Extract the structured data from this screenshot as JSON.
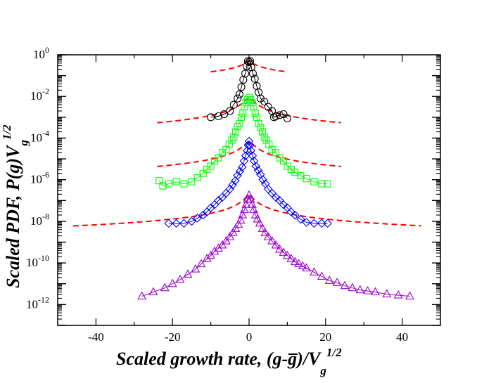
{
  "chart_data": {
    "type": "scatter",
    "title": "",
    "xlabel": "Scaled growth rate, (g-g̅)/V",
    "xlabel_sub": "g",
    "xlabel_sup": "1/2",
    "ylabel": "Scaled PDF, P(g)V",
    "ylabel_sub": "g",
    "ylabel_sup": "1/2",
    "xlim": [
      -50,
      50
    ],
    "ylim_log10": [
      -13,
      0
    ],
    "xticks": [
      -40,
      -20,
      0,
      20,
      40
    ],
    "xtick_labels": [
      "-40",
      "-20",
      "0",
      "20",
      "40"
    ],
    "yticks_log10": [
      0,
      -2,
      -4,
      -6,
      -8,
      -10,
      -12
    ],
    "ytick_base": "10",
    "ytick_exponents": [
      "0",
      "-2",
      "-4",
      "-6",
      "-8",
      "-10",
      "-12"
    ],
    "grid": false,
    "series": [
      {
        "name": "black circles",
        "marker": "circle",
        "color": "#000000",
        "connected": true,
        "x": [
          -10,
          -8,
          -6.5,
          -5,
          -4,
          -3,
          -2.5,
          -2,
          -1.5,
          -1,
          -0.6,
          -0.3,
          0,
          0.3,
          0.6,
          1,
          1.5,
          2,
          2.5,
          3,
          4,
          5,
          6,
          6.5,
          7,
          8,
          9,
          10
        ],
        "log10y": [
          -3.0,
          -2.95,
          -2.85,
          -2.7,
          -2.4,
          -2.1,
          -1.9,
          -1.55,
          -1.2,
          -0.9,
          -0.55,
          -0.3,
          -0.35,
          -0.3,
          -0.6,
          -0.9,
          -1.15,
          -1.5,
          -1.8,
          -2.1,
          -2.25,
          -2.5,
          -2.7,
          -3.0,
          -2.95,
          -2.9,
          -2.85,
          -3.05
        ]
      },
      {
        "name": "green squares",
        "marker": "square",
        "color": "#00ff00",
        "connected": true,
        "x": [
          -23.5,
          -22.5,
          -21,
          -19,
          -17,
          -15,
          -13.5,
          -12,
          -11,
          -10,
          -9,
          -8,
          -7,
          -6,
          -5.2,
          -4.5,
          -4,
          -3.5,
          -3,
          -2.5,
          -2,
          -1.6,
          -1.2,
          -0.8,
          -0.4,
          0,
          0.4,
          0.8,
          1.2,
          1.6,
          2,
          2.5,
          3,
          3.5,
          4,
          4.5,
          5.2,
          6,
          7,
          8,
          9,
          10,
          11,
          12,
          13.5,
          15,
          17,
          19,
          20.5
        ],
        "log10y": [
          -6.05,
          -6.3,
          -6.2,
          -6.1,
          -6.2,
          -6.1,
          -5.9,
          -5.7,
          -5.5,
          -5.35,
          -5.1,
          -4.95,
          -4.7,
          -4.55,
          -4.3,
          -4.1,
          -3.95,
          -3.7,
          -3.45,
          -3.3,
          -3.0,
          -2.8,
          -2.5,
          -2.3,
          -2.15,
          -2.05,
          -2.15,
          -2.3,
          -2.5,
          -2.8,
          -3.0,
          -3.3,
          -3.5,
          -3.7,
          -3.95,
          -4.1,
          -4.3,
          -4.55,
          -4.7,
          -4.95,
          -5.1,
          -5.35,
          -5.5,
          -5.65,
          -5.8,
          -5.95,
          -6.1,
          -6.2,
          -6.2
        ]
      },
      {
        "name": "blue diamonds",
        "marker": "diamond",
        "color": "#0000ff",
        "connected": true,
        "x": [
          -21,
          -19,
          -17,
          -15,
          -13.5,
          -12,
          -11,
          -10,
          -9,
          -8,
          -7,
          -6,
          -5,
          -4.3,
          -3.6,
          -3,
          -2.4,
          -1.8,
          -1.3,
          -0.9,
          -0.5,
          -0.2,
          0,
          0.2,
          0.5,
          0.9,
          1.3,
          1.8,
          2.4,
          3,
          3.6,
          4.3,
          5,
          6,
          7,
          8,
          9,
          10,
          11,
          12,
          13.5,
          15,
          17,
          19,
          20.5
        ],
        "log10y": [
          -8.1,
          -8.1,
          -8.1,
          -8.0,
          -7.85,
          -7.7,
          -7.55,
          -7.35,
          -7.2,
          -7.0,
          -6.85,
          -6.65,
          -6.45,
          -6.25,
          -6.05,
          -5.8,
          -5.6,
          -5.4,
          -5.1,
          -4.85,
          -4.6,
          -4.35,
          -4.15,
          -4.35,
          -4.6,
          -4.85,
          -5.1,
          -5.35,
          -5.55,
          -5.75,
          -6.0,
          -6.2,
          -6.45,
          -6.65,
          -6.85,
          -7.0,
          -7.2,
          -7.35,
          -7.55,
          -7.7,
          -7.9,
          -8.05,
          -8.1,
          -8.1,
          -8.1
        ]
      },
      {
        "name": "purple triangles",
        "marker": "triangle",
        "color": "#9900cc",
        "connected": true,
        "x": [
          -28,
          -25,
          -22,
          -20,
          -18,
          -16,
          -14,
          -12.5,
          -11,
          -10,
          -9,
          -8,
          -7,
          -6,
          -5,
          -4.2,
          -3.5,
          -2.8,
          -2.2,
          -1.7,
          -1.2,
          -0.8,
          -0.4,
          0,
          0.4,
          0.8,
          1.2,
          1.7,
          2.2,
          2.8,
          3.5,
          4.2,
          5,
          6,
          7,
          8,
          9,
          10,
          11,
          12,
          13,
          14,
          15,
          17,
          19,
          21,
          23,
          25,
          27,
          29,
          31,
          33,
          36,
          39,
          42
        ],
        "log10y": [
          -11.6,
          -11.4,
          -11.2,
          -11.0,
          -10.8,
          -10.55,
          -10.3,
          -10.05,
          -9.8,
          -9.65,
          -9.45,
          -9.3,
          -9.15,
          -8.95,
          -8.75,
          -8.55,
          -8.35,
          -8.15,
          -7.95,
          -7.7,
          -7.45,
          -7.2,
          -6.95,
          -6.75,
          -6.95,
          -7.2,
          -7.45,
          -7.7,
          -7.9,
          -8.1,
          -8.35,
          -8.55,
          -8.75,
          -8.95,
          -9.15,
          -9.35,
          -9.5,
          -9.65,
          -9.8,
          -9.95,
          -10.05,
          -10.15,
          -10.25,
          -10.45,
          -10.65,
          -10.85,
          -10.95,
          -11.1,
          -11.2,
          -11.3,
          -11.35,
          -11.4,
          -11.5,
          -11.55,
          -11.6
        ]
      }
    ],
    "fits": [
      {
        "name": "fit black",
        "color": "#ff0000",
        "style": "dashed",
        "x_range": [
          -10,
          10
        ],
        "peak_log10y": -0.25,
        "a": 0.5,
        "b": 1.1,
        "c": 1.0
      },
      {
        "name": "fit green",
        "color": "#ff0000",
        "style": "dashed",
        "x_range": [
          -24,
          24
        ],
        "peak_log10y": -2.05,
        "a": 0.6,
        "b": 1.55,
        "c": 1.2
      },
      {
        "name": "fit blue",
        "color": "#ff0000",
        "style": "dashed",
        "x_range": [
          -24,
          24
        ],
        "peak_log10y": -4.15,
        "a": 0.6,
        "b": 1.55,
        "c": 1.2
      },
      {
        "name": "fit purple",
        "color": "#ff0000",
        "style": "dashed",
        "x_range": [
          -46,
          45
        ],
        "peak_log10y": -6.75,
        "a": 0.6,
        "b": 1.55,
        "c": 1.2
      }
    ]
  }
}
